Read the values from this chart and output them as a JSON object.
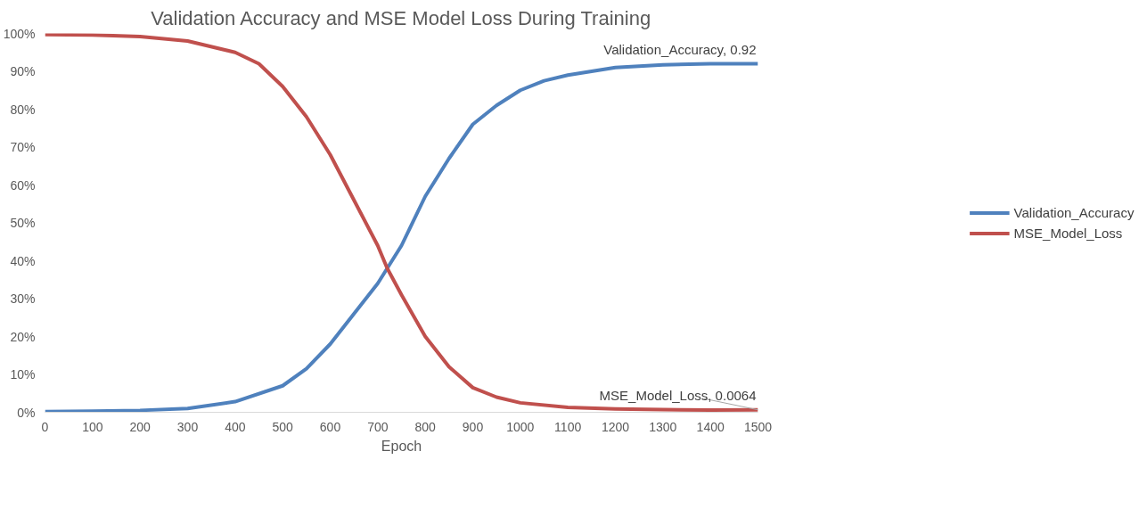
{
  "chart_data": {
    "type": "line",
    "title": "Validation Accuracy and MSE Model Loss During Training",
    "xlabel": "Epoch",
    "xlim": [
      0,
      1500
    ],
    "xticks": [
      0,
      100,
      200,
      300,
      400,
      500,
      600,
      700,
      800,
      900,
      1000,
      1100,
      1200,
      1300,
      1400,
      1500
    ],
    "ylim": [
      0,
      100
    ],
    "yticks": [
      {
        "value": 0,
        "label": "0%"
      },
      {
        "value": 10,
        "label": "10%"
      },
      {
        "value": 20,
        "label": "20%"
      },
      {
        "value": 30,
        "label": "30%"
      },
      {
        "value": 40,
        "label": "40%"
      },
      {
        "value": 50,
        "label": "50%"
      },
      {
        "value": 60,
        "label": "60%"
      },
      {
        "value": 70,
        "label": "70%"
      },
      {
        "value": 80,
        "label": "80%"
      },
      {
        "value": 90,
        "label": "90%"
      },
      {
        "value": 100,
        "label": "100%"
      }
    ],
    "grid": false,
    "legend": "right",
    "marker": "none",
    "line_style": "solid",
    "series": [
      {
        "name": "Validation_Accuracy",
        "color": "#4f81bd",
        "x": [
          0,
          100,
          200,
          300,
          400,
          500,
          550,
          600,
          650,
          700,
          720,
          750,
          800,
          850,
          900,
          950,
          1000,
          1050,
          1100,
          1200,
          1300,
          1400,
          1500
        ],
        "values": [
          0.2,
          0.3,
          0.5,
          1.0,
          2.8,
          7,
          11.5,
          18,
          26,
          34,
          38,
          44,
          57,
          67,
          76,
          81,
          85,
          87.5,
          89,
          91,
          91.7,
          92,
          92
        ]
      },
      {
        "name": "MSE_Model_Loss",
        "color": "#c0504d",
        "x": [
          0,
          100,
          200,
          300,
          400,
          450,
          500,
          550,
          600,
          650,
          700,
          720,
          750,
          800,
          850,
          900,
          950,
          1000,
          1100,
          1200,
          1300,
          1400,
          1500
        ],
        "values": [
          99.7,
          99.6,
          99.2,
          98,
          95,
          92,
          86,
          78,
          68,
          56,
          44,
          38,
          31,
          20,
          12,
          6.5,
          4,
          2.5,
          1.3,
          0.9,
          0.7,
          0.6,
          0.64
        ]
      }
    ],
    "annotations": [
      {
        "text": "Validation_Accuracy, 0.92",
        "x": 1500,
        "y": 92
      },
      {
        "text": "MSE_Model_Loss, 0.0064",
        "x": 1500,
        "y": 0.64
      }
    ]
  }
}
